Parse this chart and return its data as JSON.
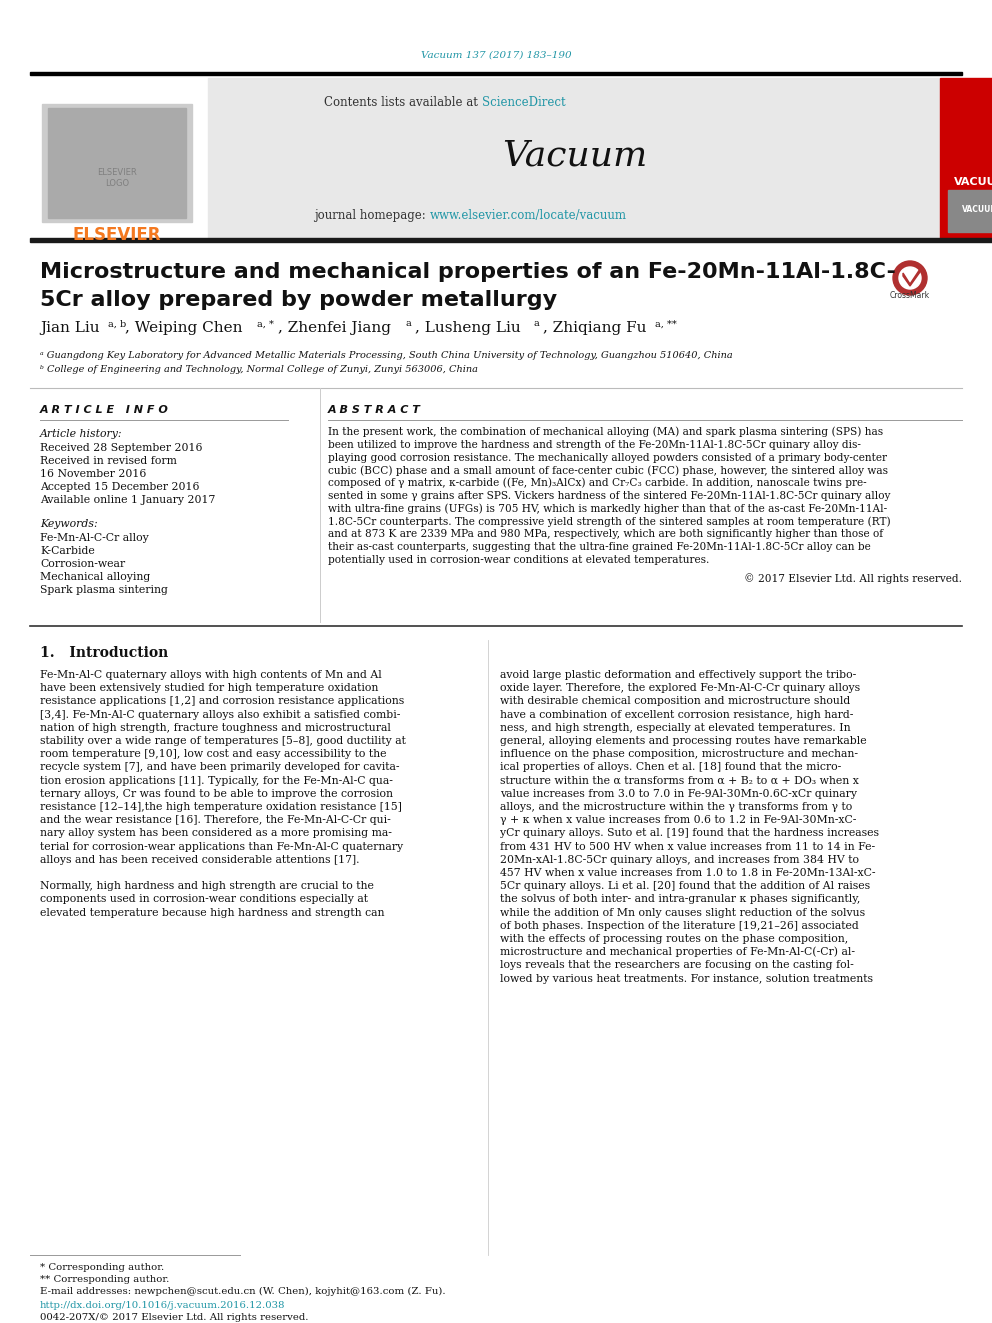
{
  "journal_ref": "Vacuum 137 (2017) 183–190",
  "journal_ref_color": "#2196A6",
  "journal_name": "Vacuum",
  "sciencedirect_color": "#2196A6",
  "homepage_url_color": "#2196A6",
  "elsevier_color": "#F47920",
  "article_title_line1": "Microstructure and mechanical properties of an Fe-20Mn-11Al-1.8C-",
  "article_title_line2": "5Cr alloy prepared by powder metallurgy",
  "affiliation_a": "ᵃ Guangdong Key Laboratory for Advanced Metallic Materials Processing, South China University of Technology, Guangzhou 510640, China",
  "affiliation_b": "ᵇ College of Engineering and Technology, Normal College of Zunyi, Zunyi 563006, China",
  "article_info_header": "A R T I C L E   I N F O",
  "article_history_header": "Article history:",
  "received_text": "Received 28 September 2016",
  "revised_text": "Received in revised form",
  "revised_date": "16 November 2016",
  "accepted_text": "Accepted 15 December 2016",
  "available_text": "Available online 1 January 2017",
  "keywords_header": "Keywords:",
  "keyword1": "Fe-Mn-Al-C-Cr alloy",
  "keyword2": "K-Carbide",
  "keyword3": "Corrosion-wear",
  "keyword4": "Mechanical alloying",
  "keyword5": "Spark plasma sintering",
  "abstract_header": "A B S T R A C T",
  "copyright_text": "© 2017 Elsevier Ltd. All rights reserved.",
  "intro_header": "1.   Introduction",
  "footnote1": "* Corresponding author.",
  "footnote2": "** Corresponding author.",
  "footnote3": "E-mail addresses: newpchen@scut.edu.cn (W. Chen), kojyhit@163.com (Z. Fu).",
  "doi_text": "http://dx.doi.org/10.1016/j.vacuum.2016.12.038",
  "doi_color": "#2196A6",
  "issn_text": "0042-207X/© 2017 Elsevier Ltd. All rights reserved.",
  "bg_color": "#ffffff",
  "abstract_lines": [
    "In the present work, the combination of mechanical alloying (MA) and spark plasma sintering (SPS) has",
    "been utilized to improve the hardness and strength of the Fe-20Mn-11Al-1.8C-5Cr quinary alloy dis-",
    "playing good corrosion resistance. The mechanically alloyed powders consisted of a primary body-center",
    "cubic (BCC) phase and a small amount of face-center cubic (FCC) phase, however, the sintered alloy was",
    "composed of γ matrix, κ-carbide ((Fe, Mn)₃AlCx) and Cr₇C₃ carbide. In addition, nanoscale twins pre-",
    "sented in some γ grains after SPS. Vickers hardness of the sintered Fe-20Mn-11Al-1.8C-5Cr quinary alloy",
    "with ultra-fine grains (UFGs) is 705 HV, which is markedly higher than that of the as-cast Fe-20Mn-11Al-",
    "1.8C-5Cr counterparts. The compressive yield strength of the sintered samples at room temperature (RT)",
    "and at 873 K are 2339 MPa and 980 MPa, respectively, which are both significantly higher than those of",
    "their as-cast counterparts, suggesting that the ultra-fine grained Fe-20Mn-11Al-1.8C-5Cr alloy can be",
    "potentially used in corrosion-wear conditions at elevated temperatures."
  ],
  "intro_col1_lines": [
    "Fe-Mn-Al-C quaternary alloys with high contents of Mn and Al",
    "have been extensively studied for high temperature oxidation",
    "resistance applications [1,2] and corrosion resistance applications",
    "[3,4]. Fe-Mn-Al-C quaternary alloys also exhibit a satisfied combi-",
    "nation of high strength, fracture toughness and microstructural",
    "stability over a wide range of temperatures [5–8], good ductility at",
    "room temperature [9,10], low cost and easy accessibility to the",
    "recycle system [7], and have been primarily developed for cavita-",
    "tion erosion applications [11]. Typically, for the Fe-Mn-Al-C qua-",
    "ternary alloys, Cr was found to be able to improve the corrosion",
    "resistance [12–14],the high temperature oxidation resistance [15]",
    "and the wear resistance [16]. Therefore, the Fe-Mn-Al-C-Cr qui-",
    "nary alloy system has been considered as a more promising ma-",
    "terial for corrosion-wear applications than Fe-Mn-Al-C quaternary",
    "alloys and has been received considerable attentions [17].",
    "",
    "Normally, high hardness and high strength are crucial to the",
    "components used in corrosion-wear conditions especially at",
    "elevated temperature because high hardness and strength can"
  ],
  "intro_col2_lines": [
    "avoid large plastic deformation and effectively support the tribo-",
    "oxide layer. Therefore, the explored Fe-Mn-Al-C-Cr quinary alloys",
    "with desirable chemical composition and microstructure should",
    "have a combination of excellent corrosion resistance, high hard-",
    "ness, and high strength, especially at elevated temperatures. In",
    "general, alloying elements and processing routes have remarkable",
    "influence on the phase composition, microstructure and mechan-",
    "ical properties of alloys. Chen et al. [18] found that the micro-",
    "structure within the α transforms from α + B₂ to α + DO₃ when x",
    "value increases from 3.0 to 7.0 in Fe-9Al-30Mn-0.6C-xCr quinary",
    "alloys, and the microstructure within the γ transforms from γ to",
    "γ + κ when x value increases from 0.6 to 1.2 in Fe-9Al-30Mn-xC-",
    "yCr quinary alloys. Suto et al. [19] found that the hardness increases",
    "from 431 HV to 500 HV when x value increases from 11 to 14 in Fe-",
    "20Mn-xAl-1.8C-5Cr quinary alloys, and increases from 384 HV to",
    "457 HV when x value increases from 1.0 to 1.8 in Fe-20Mn-13Al-xC-",
    "5Cr quinary alloys. Li et al. [20] found that the addition of Al raises",
    "the solvus of both inter- and intra-granular κ phases significantly,",
    "while the addition of Mn only causes slight reduction of the solvus",
    "of both phases. Inspection of the literature [19,21–26] associated",
    "with the effects of processing routes on the phase composition,",
    "microstructure and mechanical properties of Fe-Mn-Al-C(-Cr) al-",
    "loys reveals that the researchers are focusing on the casting fol-",
    "lowed by various heat treatments. For instance, solution treatments"
  ]
}
